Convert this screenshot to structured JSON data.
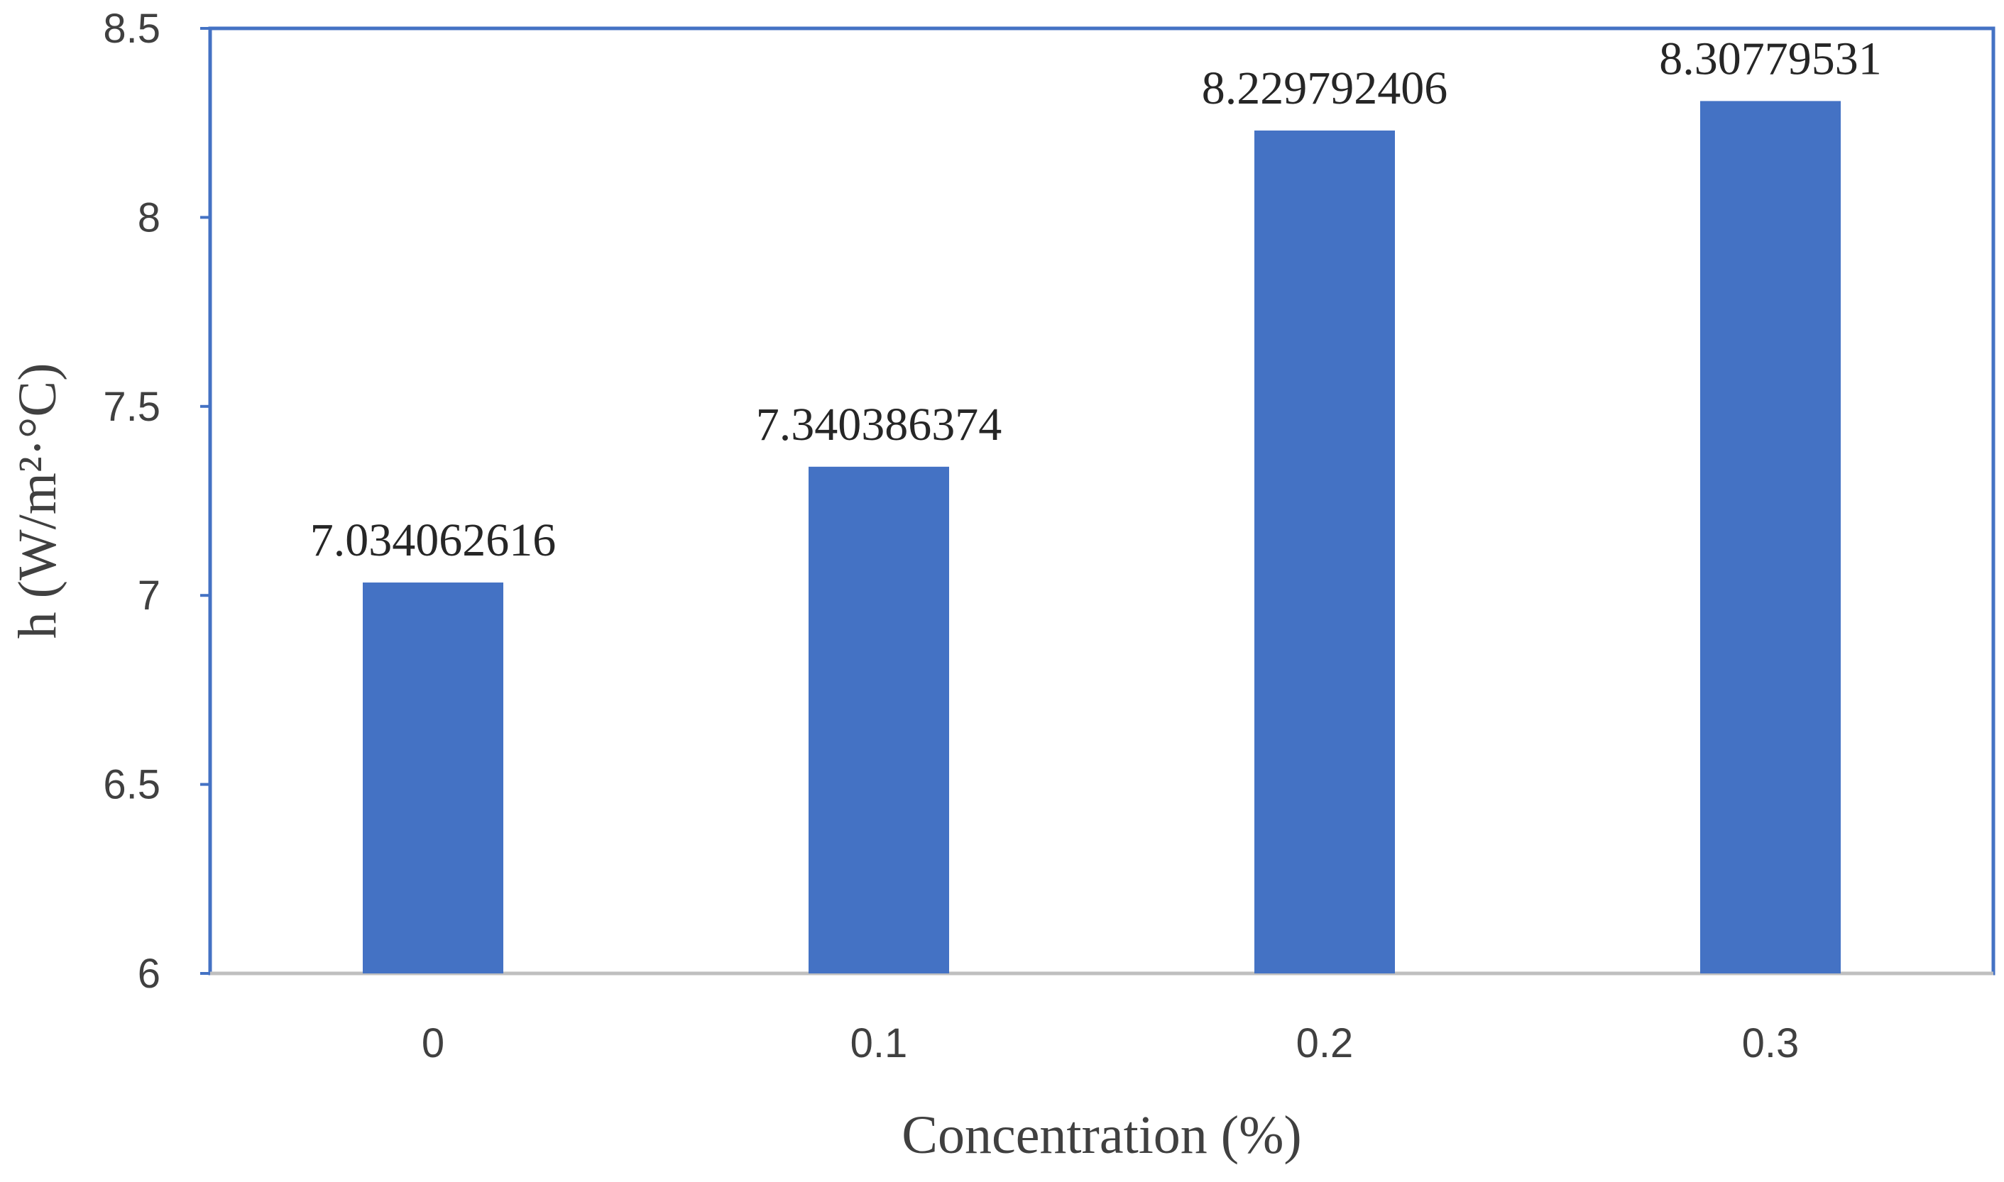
{
  "chart_data": {
    "type": "bar",
    "title": "",
    "xlabel": "Concentration (%)",
    "ylabel": "h (W/m²·°C)",
    "categories": [
      "0",
      "0.1",
      "0.2",
      "0.3"
    ],
    "values": [
      7.034062616,
      7.340386374,
      8.229792406,
      8.30779531
    ],
    "value_labels": [
      "7.034062616",
      "7.340386374",
      "8.229792406",
      "8.30779531"
    ],
    "ylim": [
      6,
      8.5
    ],
    "yticks": [
      "6",
      "6.5",
      "7",
      "7.5",
      "8",
      "8.5"
    ],
    "grid": false,
    "legend": "none",
    "colors": {
      "bar": "#4472C4",
      "frame": "#4472C4",
      "axis": "#BFBFBF"
    }
  }
}
